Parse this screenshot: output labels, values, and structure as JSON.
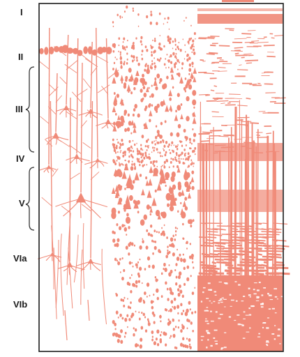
{
  "layers": {
    "I": "I",
    "II": "II",
    "III": "III",
    "IV": "IV",
    "V": "V",
    "VIa": "VIa",
    "VIb": "VIb"
  },
  "colors": {
    "stain": "#f08a78",
    "frame": "#1a1a1a",
    "label": "#1a1a1a",
    "background": "#ffffff"
  },
  "panels": [
    "golgi-stain-panel",
    "nissl-stain-panel",
    "myelin-stain-panel"
  ]
}
